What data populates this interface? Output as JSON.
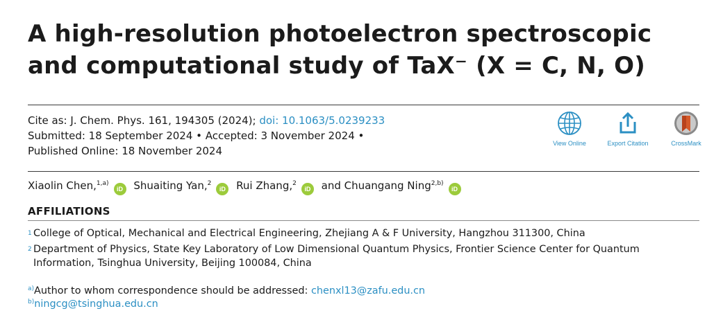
{
  "title": "A high-resolution photoelectron spectroscopic and computational study of TaX⁻ (X = C, N, O)",
  "citation": {
    "cite_prefix": "Cite as: J. Chem. Phys. 161, 194305 (2024); ",
    "doi_label": "doi: 10.1063/5.0239233",
    "dates_line": "Submitted: 18 September 2024 • Accepted: 3 November 2024 •",
    "published_line": "Published Online: 18 November 2024"
  },
  "actions": {
    "view_online": "View Online",
    "export_citation": "Export Citation",
    "crossmark": "CrossMark"
  },
  "authors": [
    {
      "name": "Xiaolin Chen,",
      "sup": "1,a)"
    },
    {
      "name": "Shuaiting Yan,",
      "sup": "2"
    },
    {
      "name": "Rui Zhang,",
      "sup": "2"
    },
    {
      "name": "and Chuangang Ning",
      "sup": "2,b)"
    }
  ],
  "orcid_label": "iD",
  "affiliations": {
    "heading": "AFFILIATIONS",
    "items": [
      {
        "num": "1",
        "text": "College of Optical, Mechanical and Electrical Engineering, Zhejiang A & F University, Hangzhou 311300, China"
      },
      {
        "num": "2",
        "text": "Department of Physics, State Key Laboratory of Low Dimensional Quantum Physics, Frontier Science Center for Quantum Information, Tsinghua University, Beijing 100084, China"
      }
    ]
  },
  "correspondence": {
    "a_mark": "a)",
    "a_text": "Author to whom correspondence should be addressed: ",
    "a_email": "chenxl13@zafu.edu.cn",
    "b_mark": "b)",
    "b_email": "ningcg@tsinghua.edu.cn"
  },
  "colors": {
    "accent_blue": "#2b8fc3",
    "orcid_green": "#9ccb3b",
    "crossmark_orange": "#d45a2a"
  }
}
